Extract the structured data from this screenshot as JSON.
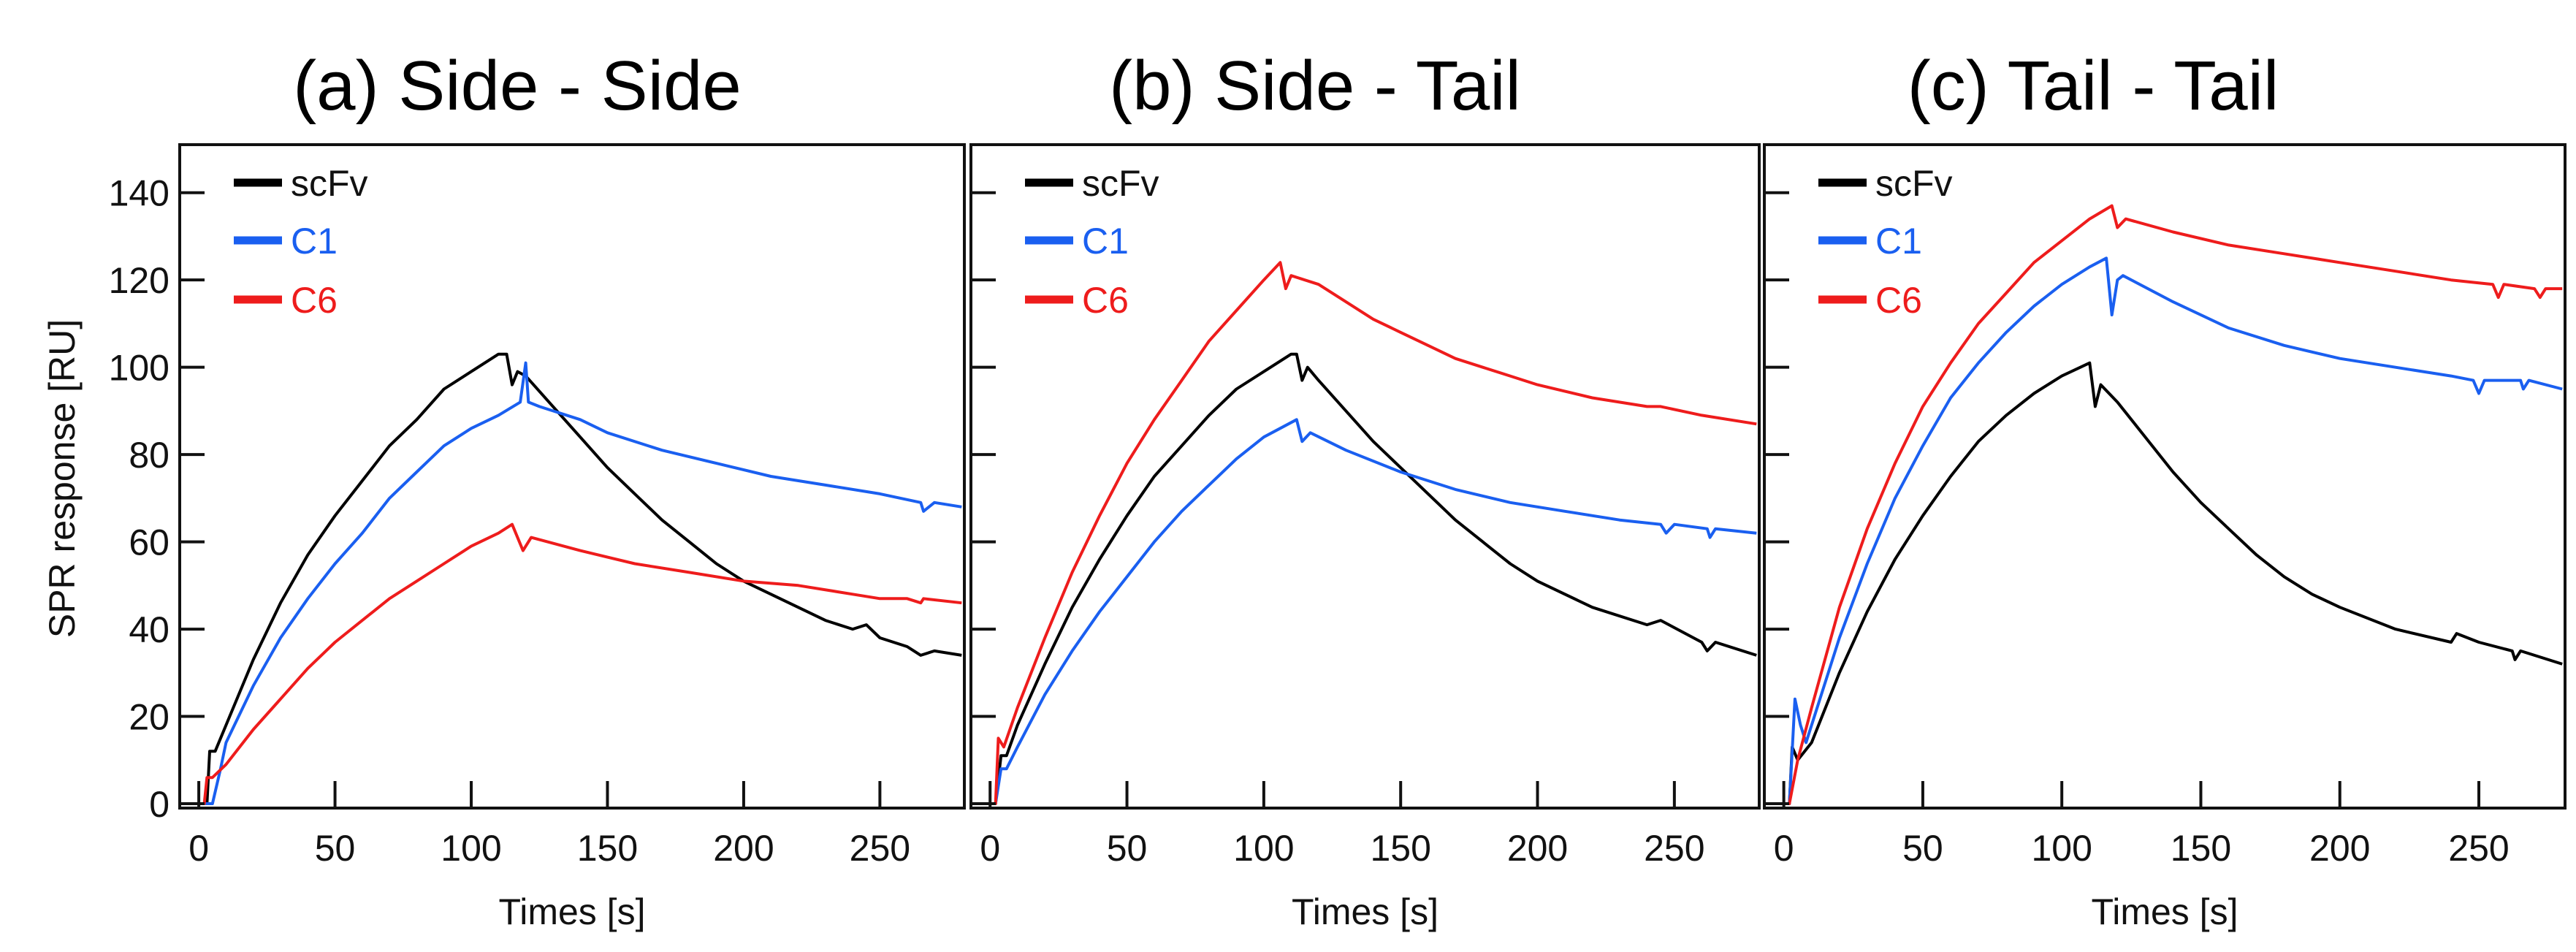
{
  "chart_data": [
    {
      "type": "line",
      "title": "(a) Side - Side",
      "xlabel": "Times [s]",
      "ylabel": "SPR response [RU]",
      "xlim": [
        -7,
        281
      ],
      "ylim": [
        -1,
        151
      ],
      "xticks": [
        0,
        50,
        100,
        150,
        200,
        250
      ],
      "yticks": [
        0,
        20,
        40,
        60,
        80,
        100,
        120,
        140
      ],
      "show_ytick_labels": true,
      "legend_position": "top-left",
      "series": [
        {
          "name": "scFv",
          "color": "#000000",
          "x": [
            -7,
            3,
            4,
            6,
            10,
            20,
            30,
            40,
            50,
            60,
            70,
            80,
            90,
            100,
            110,
            113,
            115,
            117,
            120,
            130,
            140,
            150,
            160,
            170,
            180,
            190,
            200,
            210,
            220,
            230,
            240,
            245,
            250,
            260,
            265,
            270,
            280
          ],
          "y": [
            0,
            0,
            12,
            12,
            18,
            33,
            46,
            57,
            66,
            74,
            82,
            88,
            95,
            99,
            103,
            103,
            96,
            99,
            98,
            91,
            84,
            77,
            71,
            65,
            60,
            55,
            51,
            48,
            45,
            42,
            40,
            41,
            38,
            36,
            34,
            35,
            34
          ]
        },
        {
          "name": "C1",
          "color": "#1a5ff0",
          "x": [
            -7,
            5,
            8,
            10,
            20,
            30,
            40,
            50,
            60,
            70,
            80,
            90,
            100,
            110,
            118,
            120,
            121,
            125,
            140,
            150,
            170,
            190,
            210,
            230,
            250,
            265,
            266,
            270,
            280
          ],
          "y": [
            0,
            0,
            8,
            14,
            27,
            38,
            47,
            55,
            62,
            70,
            76,
            82,
            86,
            89,
            92,
            101,
            92,
            91,
            88,
            85,
            81,
            78,
            75,
            73,
            71,
            69,
            67,
            69,
            68
          ]
        },
        {
          "name": "C6",
          "color": "#ee1c1c",
          "x": [
            -7,
            2,
            3,
            5,
            10,
            20,
            30,
            40,
            50,
            60,
            70,
            80,
            90,
            100,
            110,
            115,
            119,
            122,
            140,
            160,
            180,
            200,
            220,
            240,
            250,
            260,
            265,
            266,
            280
          ],
          "y": [
            0,
            0,
            6,
            6,
            9,
            17,
            24,
            31,
            37,
            42,
            47,
            51,
            55,
            59,
            62,
            64,
            58,
            61,
            58,
            55,
            53,
            51,
            50,
            48,
            47,
            47,
            46,
            47,
            46
          ]
        }
      ]
    },
    {
      "type": "line",
      "title": "(b) Side - Tail",
      "xlabel": "Times [s]",
      "ylabel": "",
      "xlim": [
        -7,
        281
      ],
      "ylim": [
        -1,
        151
      ],
      "xticks": [
        0,
        50,
        100,
        150,
        200,
        250
      ],
      "yticks": [
        0,
        20,
        40,
        60,
        80,
        100,
        120,
        140
      ],
      "show_ytick_labels": false,
      "legend_position": "top-left",
      "series": [
        {
          "name": "scFv",
          "color": "#000000",
          "x": [
            -7,
            2,
            4,
            6,
            10,
            20,
            30,
            40,
            50,
            60,
            70,
            80,
            90,
            100,
            110,
            112,
            114,
            116,
            120,
            130,
            140,
            150,
            160,
            170,
            180,
            190,
            200,
            220,
            240,
            245,
            260,
            262,
            265,
            280
          ],
          "y": [
            0,
            0,
            11,
            11,
            18,
            32,
            45,
            56,
            66,
            75,
            82,
            89,
            95,
            99,
            103,
            103,
            97,
            100,
            97,
            90,
            83,
            77,
            71,
            65,
            60,
            55,
            51,
            45,
            41,
            42,
            37,
            35,
            37,
            34
          ]
        },
        {
          "name": "C1",
          "color": "#1a5ff0",
          "x": [
            -7,
            2,
            4,
            6,
            10,
            20,
            30,
            40,
            50,
            60,
            70,
            80,
            90,
            100,
            112,
            114,
            117,
            130,
            150,
            170,
            190,
            210,
            230,
            245,
            247,
            250,
            262,
            263,
            265,
            280
          ],
          "y": [
            0,
            0,
            8,
            8,
            13,
            25,
            35,
            44,
            52,
            60,
            67,
            73,
            79,
            84,
            88,
            83,
            85,
            81,
            76,
            72,
            69,
            67,
            65,
            64,
            62,
            64,
            63,
            61,
            63,
            62
          ]
        },
        {
          "name": "C6",
          "color": "#ee1c1c",
          "x": [
            -7,
            2,
            3,
            5,
            10,
            20,
            30,
            40,
            50,
            60,
            70,
            80,
            90,
            100,
            106,
            108,
            110,
            120,
            130,
            140,
            150,
            160,
            170,
            180,
            190,
            200,
            220,
            240,
            245,
            260,
            280
          ],
          "y": [
            0,
            0,
            15,
            13,
            22,
            38,
            53,
            66,
            78,
            88,
            97,
            106,
            113,
            120,
            124,
            118,
            121,
            119,
            115,
            111,
            108,
            105,
            102,
            100,
            98,
            96,
            93,
            91,
            91,
            89,
            87
          ]
        }
      ]
    },
    {
      "type": "line",
      "title": "(c) Tail - Tail",
      "xlabel": "Times [s]",
      "ylabel": "",
      "xlim": [
        -7,
        281
      ],
      "ylim": [
        -1,
        151
      ],
      "xticks": [
        0,
        50,
        100,
        150,
        200,
        250
      ],
      "yticks": [
        0,
        20,
        40,
        60,
        80,
        100,
        120,
        140
      ],
      "show_ytick_labels": false,
      "legend_position": "top-left",
      "series": [
        {
          "name": "scFv",
          "color": "#000000",
          "x": [
            -7,
            2,
            3,
            5,
            10,
            20,
            30,
            40,
            50,
            60,
            70,
            80,
            90,
            100,
            110,
            112,
            114,
            120,
            130,
            140,
            150,
            160,
            170,
            180,
            190,
            200,
            220,
            240,
            242,
            250,
            262,
            263,
            265,
            280
          ],
          "y": [
            0,
            0,
            13,
            10,
            14,
            30,
            44,
            56,
            66,
            75,
            83,
            89,
            94,
            98,
            101,
            91,
            96,
            92,
            84,
            76,
            69,
            63,
            57,
            52,
            48,
            45,
            40,
            37,
            39,
            37,
            35,
            33,
            35,
            32
          ]
        },
        {
          "name": "C1",
          "color": "#1a5ff0",
          "x": [
            -7,
            2,
            4,
            6,
            8,
            10,
            20,
            30,
            40,
            50,
            60,
            70,
            80,
            90,
            100,
            110,
            116,
            118,
            120,
            122,
            140,
            160,
            180,
            200,
            220,
            240,
            248,
            250,
            252,
            265,
            266,
            268,
            280
          ],
          "y": [
            0,
            0,
            24,
            18,
            14,
            18,
            38,
            55,
            70,
            82,
            93,
            101,
            108,
            114,
            119,
            123,
            125,
            112,
            120,
            121,
            115,
            109,
            105,
            102,
            100,
            98,
            97,
            94,
            97,
            97,
            95,
            97,
            95
          ]
        },
        {
          "name": "C6",
          "color": "#ee1c1c",
          "x": [
            -7,
            2,
            5,
            10,
            20,
            30,
            40,
            50,
            60,
            70,
            80,
            90,
            100,
            110,
            118,
            120,
            123,
            140,
            160,
            180,
            200,
            220,
            240,
            255,
            257,
            259,
            270,
            272,
            274,
            280
          ],
          "y": [
            0,
            0,
            10,
            22,
            45,
            63,
            78,
            91,
            101,
            110,
            117,
            124,
            129,
            134,
            137,
            132,
            134,
            131,
            128,
            126,
            124,
            122,
            120,
            119,
            116,
            119,
            118,
            116,
            118,
            118
          ]
        }
      ]
    }
  ]
}
